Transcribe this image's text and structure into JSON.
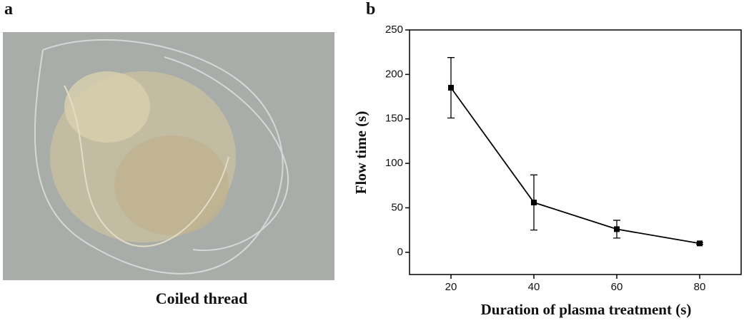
{
  "figure": {
    "panel_a": "a",
    "caption": "Coiled thread",
    "panel_b": "b"
  },
  "chart_data": {
    "type": "line",
    "x_label": "Duration of plasma treatment (s)",
    "y_label": "Flow time (s)",
    "x": [
      20,
      40,
      60,
      80
    ],
    "series": [
      {
        "color": "#000000",
        "values": [
          185,
          56,
          26,
          10
        ],
        "errors": [
          34,
          31,
          10,
          1
        ]
      }
    ],
    "xlim": [
      10,
      90
    ],
    "xticks": [
      20,
      40,
      60,
      80
    ],
    "ylim": [
      -25,
      250
    ],
    "yticks": [
      0,
      50,
      100,
      150,
      200,
      250
    ],
    "grid": false
  }
}
